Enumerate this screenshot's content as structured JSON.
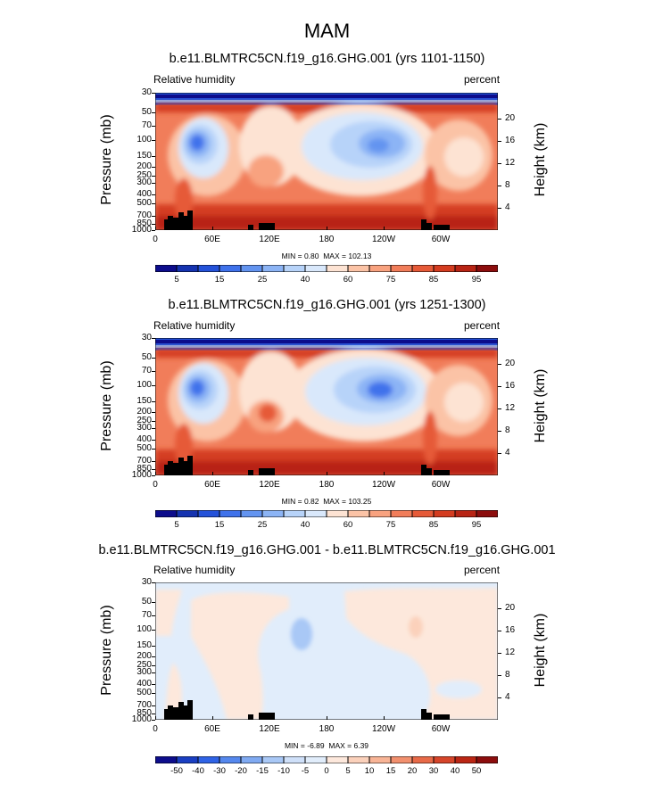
{
  "main_title": "MAM",
  "colors": {
    "abs_scale": [
      "#0d0d8c",
      "#1533b0",
      "#2452d9",
      "#3f72eb",
      "#6394f0",
      "#8cb4f5",
      "#b7d3f9",
      "#d9e8fb",
      "#fde3d3",
      "#fbc3a6",
      "#f8a27f",
      "#f17d5a",
      "#e65a38",
      "#d43c20",
      "#b82414",
      "#8c0d0d"
    ],
    "diff_scale": [
      "#0d0d8c",
      "#1a3fc2",
      "#2f63e6",
      "#5588ee",
      "#80aaf2",
      "#a9c8f6",
      "#cfe0f9",
      "#e1edfb",
      "#fde8dc",
      "#fbd1bb",
      "#f8b496",
      "#f2906e",
      "#e86a48",
      "#d6452a",
      "#bb2614",
      "#8c0d0d"
    ]
  },
  "chart_data": [
    {
      "type": "heatmap",
      "title": "b.e11.BLMTRC5CN.f19_g16.GHG.001 (yrs 1101-1150)",
      "left_label": "Relative humidity",
      "right_label": "percent",
      "ylabel": "Pressure (mb)",
      "ylabel_right": "Height (km)",
      "x_ticks": [
        "0",
        "60E",
        "120E",
        "180",
        "120W",
        "60W"
      ],
      "y_ticks": [
        "30",
        "50",
        "70",
        "100",
        "150",
        "200",
        "250",
        "300",
        "400",
        "500",
        "700",
        "850",
        "1000"
      ],
      "y_ticks_right": [
        "20",
        "16",
        "12",
        "8",
        "4"
      ],
      "min": "0.80",
      "max": "102.13",
      "min_label": "MIN =",
      "max_label": "MAX =",
      "levels": [
        "5",
        "10",
        "15",
        "20",
        "25",
        "30",
        "40",
        "50",
        "60",
        "70",
        "75",
        "80",
        "85",
        "90",
        "95"
      ],
      "levels_shown": [
        "5",
        "15",
        "25",
        "40",
        "60",
        "75",
        "85",
        "95"
      ]
    },
    {
      "type": "heatmap",
      "title": "b.e11.BLMTRC5CN.f19_g16.GHG.001 (yrs 1251-1300)",
      "left_label": "Relative humidity",
      "right_label": "percent",
      "ylabel": "Pressure (mb)",
      "ylabel_right": "Height (km)",
      "x_ticks": [
        "0",
        "60E",
        "120E",
        "180",
        "120W",
        "60W"
      ],
      "y_ticks": [
        "30",
        "50",
        "70",
        "100",
        "150",
        "200",
        "250",
        "300",
        "400",
        "500",
        "700",
        "850",
        "1000"
      ],
      "y_ticks_right": [
        "20",
        "16",
        "12",
        "8",
        "4"
      ],
      "min": "0.82",
      "max": "103.25",
      "min_label": "MIN =",
      "max_label": "MAX =",
      "levels": [
        "5",
        "10",
        "15",
        "20",
        "25",
        "30",
        "40",
        "50",
        "60",
        "70",
        "75",
        "80",
        "85",
        "90",
        "95"
      ],
      "levels_shown": [
        "5",
        "15",
        "25",
        "40",
        "60",
        "75",
        "85",
        "95"
      ]
    },
    {
      "type": "heatmap",
      "title": "b.e11.BLMTRC5CN.f19_g16.GHG.001 - b.e11.BLMTRC5CN.f19_g16.GHG.001",
      "left_label": "Relative humidity",
      "right_label": "percent",
      "ylabel": "Pressure (mb)",
      "ylabel_right": "Height (km)",
      "x_ticks": [
        "0",
        "60E",
        "120E",
        "180",
        "120W",
        "60W"
      ],
      "y_ticks": [
        "30",
        "50",
        "70",
        "100",
        "150",
        "200",
        "250",
        "300",
        "400",
        "500",
        "700",
        "850",
        "1000"
      ],
      "y_ticks_right": [
        "20",
        "16",
        "12",
        "8",
        "4"
      ],
      "min": "-6.89",
      "max": "6.39",
      "min_label": "MIN =",
      "max_label": "MAX =",
      "levels": [
        "-50",
        "-40",
        "-30",
        "-20",
        "-15",
        "-10",
        "-5",
        "0",
        "5",
        "10",
        "15",
        "20",
        "30",
        "40",
        "50"
      ],
      "levels_shown": [
        "-50",
        "-40",
        "-30",
        "-20",
        "-15",
        "-10",
        "-5",
        "0",
        "5",
        "10",
        "15",
        "20",
        "30",
        "40",
        "50"
      ]
    }
  ]
}
